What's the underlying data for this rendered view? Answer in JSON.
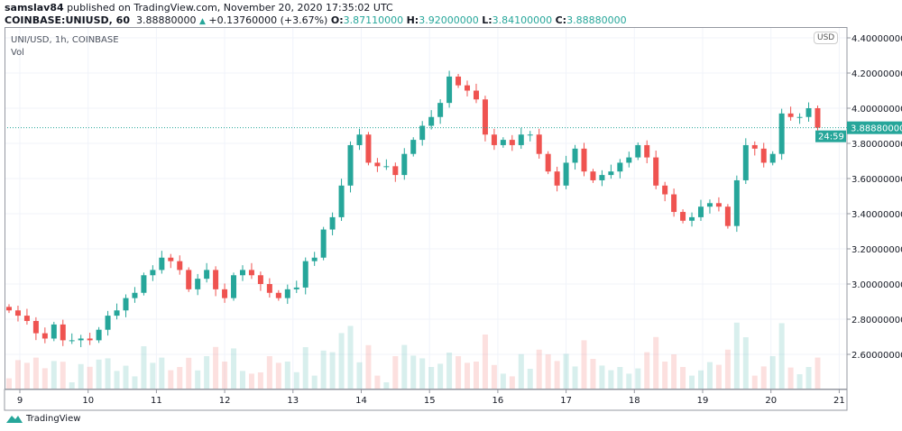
{
  "header": {
    "publisher": "samslav84",
    "published_text": "published on TradingView.com, November 20, 2020 17:35:02 UTC",
    "symbol": "COINBASE:UNIUSD, 60",
    "last": "3.88880000",
    "change": "+0.13760000 (+3.67%)",
    "open_label": "O:",
    "open": "3.87110000",
    "high_label": "H:",
    "high": "3.92000000",
    "low_label": "L:",
    "low": "3.84100000",
    "close_label": "C:",
    "close": "3.88880000"
  },
  "legend": {
    "title": "UNI/USD, 1h, COINBASE",
    "volume": "Vol"
  },
  "currency_badge": "USD",
  "price_tag": {
    "value": "3.88880000",
    "countdown": "24:59"
  },
  "footer": {
    "brand": "TradingView"
  },
  "colors": {
    "up": "#26a69a",
    "down": "#ef5350",
    "grid": "#f0f3fa",
    "price_line": "#26a69a"
  },
  "chart_data": {
    "type": "candlestick",
    "title": "UNI/USD, 1h, COINBASE",
    "interval_note": "closes sampled approx. every 3 hours",
    "x_tick_labels": [
      "9",
      "10",
      "11",
      "12",
      "13",
      "14",
      "15",
      "16",
      "17",
      "18",
      "19",
      "20",
      "21"
    ],
    "y_tick_labels": [
      "2.60000000",
      "2.80000000",
      "3.00000000",
      "3.20000000",
      "3.40000000",
      "3.60000000",
      "3.80000000",
      "4.00000000",
      "4.20000000",
      "4.40000000"
    ],
    "ylim": [
      2.4,
      4.48
    ],
    "grid": true,
    "current_price": 3.8888,
    "closes": [
      2.85,
      2.82,
      2.79,
      2.72,
      2.69,
      2.77,
      2.68,
      2.68,
      2.69,
      2.68,
      2.74,
      2.82,
      2.85,
      2.92,
      2.95,
      3.05,
      3.08,
      3.15,
      3.13,
      3.08,
      2.97,
      3.03,
      3.08,
      2.97,
      2.92,
      3.05,
      3.08,
      3.05,
      3.0,
      2.95,
      2.92,
      2.97,
      2.98,
      3.13,
      3.15,
      3.31,
      3.38,
      3.56,
      3.79,
      3.85,
      3.69,
      3.67,
      3.67,
      3.62,
      3.74,
      3.82,
      3.9,
      3.95,
      4.03,
      4.18,
      4.13,
      4.1,
      4.05,
      3.85,
      3.79,
      3.82,
      3.79,
      3.85,
      3.85,
      3.74,
      3.64,
      3.56,
      3.69,
      3.77,
      3.64,
      3.59,
      3.62,
      3.64,
      3.69,
      3.72,
      3.79,
      3.72,
      3.56,
      3.51,
      3.41,
      3.36,
      3.38,
      3.44,
      3.46,
      3.44,
      3.33,
      3.59,
      3.79,
      3.77,
      3.69,
      3.74,
      3.97,
      3.95,
      3.95,
      4.0,
      3.8888
    ]
  }
}
